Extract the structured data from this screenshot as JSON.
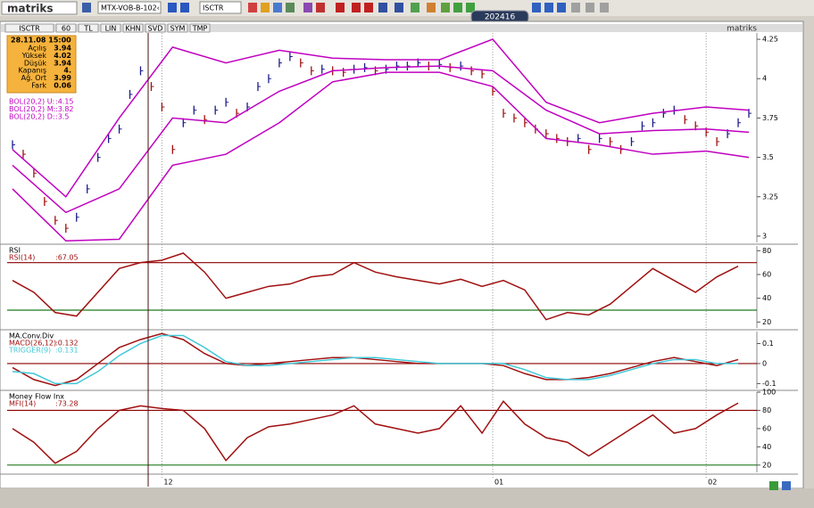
{
  "toolbar": {
    "logo": "matriks",
    "symbol": "MTX-VOB-B-102‹",
    "instrument": "ISCTR",
    "clock": "202416"
  },
  "tabs": [
    "ISCTR",
    "60",
    "TL",
    "LIN",
    "KHN",
    "SVD",
    "SYM",
    "TMP"
  ],
  "watermark": "matriks",
  "info_box": {
    "date": "28.11.08 15:00",
    "rows": [
      [
        "Açılış",
        "3.94"
      ],
      [
        "Yüksek",
        "4.02"
      ],
      [
        "Düşük",
        "3.94"
      ],
      [
        "Kapanış",
        "4."
      ],
      [
        "Ağ. Ort",
        "3.99"
      ],
      [
        "Fark",
        "0.06"
      ]
    ]
  },
  "chart_data": [
    {
      "type": "price",
      "categories": [
        null,
        null,
        null,
        null,
        null,
        null,
        null,
        null,
        null,
        null,
        null,
        null,
        null,
        null,
        "12",
        null,
        null,
        null,
        null,
        null,
        null,
        null,
        null,
        null,
        null,
        null,
        null,
        null,
        null,
        null,
        null,
        null,
        null,
        null,
        null,
        null,
        null,
        null,
        null,
        null,
        null,
        null,
        null,
        null,
        null,
        "01",
        null,
        null,
        null,
        null,
        null,
        null,
        null,
        null,
        null,
        null,
        null,
        null,
        null,
        null,
        null,
        null,
        null,
        null,
        null,
        "02",
        null,
        null,
        null,
        null
      ],
      "ylim": [
        2.96,
        4.29
      ],
      "yticks": [
        3,
        3.25,
        3.5,
        3.75,
        4,
        4.25
      ],
      "series": [
        {
          "up_color": "#1c1c8c",
          "down_color": "#a01010",
          "values": [
            3.58,
            3.52,
            3.4,
            3.22,
            3.1,
            3.05,
            3.12,
            3.3,
            3.5,
            3.62,
            3.68,
            3.9,
            4.05,
            3.95,
            3.82,
            3.55,
            3.72,
            3.8,
            3.74,
            3.8,
            3.85,
            3.78,
            3.82,
            3.95,
            4.0,
            4.1,
            4.14,
            4.1,
            4.05,
            4.06,
            4.05,
            4.04,
            4.06,
            4.07,
            4.05,
            4.06,
            4.08,
            4.08,
            4.1,
            4.08,
            4.09,
            4.07,
            4.08,
            4.05,
            4.03,
            3.92,
            3.78,
            3.75,
            3.72,
            3.68,
            3.65,
            3.62,
            3.6,
            3.62,
            3.55,
            3.62,
            3.6,
            3.55,
            3.6,
            3.7,
            3.72,
            3.78,
            3.8,
            3.74,
            3.7,
            3.66,
            3.6,
            3.65,
            3.72,
            3.78
          ]
        },
        {
          "name": "BOL(20,2) U:",
          "label": ":4.15",
          "color": "#c000c0",
          "x": [
            0,
            5,
            10,
            15,
            20,
            25,
            30,
            35,
            40,
            45,
            50,
            55,
            60,
            65,
            69
          ],
          "values": [
            3.55,
            3.25,
            3.75,
            4.2,
            4.1,
            4.18,
            4.13,
            4.12,
            4.12,
            4.25,
            3.85,
            3.72,
            3.78,
            3.82,
            3.8
          ]
        },
        {
          "name": "BOL(20,2) M:",
          "label": ":3.82",
          "color": "#c000c0",
          "x": [
            0,
            5,
            10,
            15,
            20,
            25,
            30,
            35,
            40,
            45,
            50,
            55,
            60,
            65,
            69
          ],
          "values": [
            3.45,
            3.15,
            3.3,
            3.75,
            3.72,
            3.92,
            4.05,
            4.07,
            4.08,
            4.05,
            3.8,
            3.65,
            3.67,
            3.68,
            3.66
          ]
        },
        {
          "name": "BOL(20,2) D:",
          "label": ":3.5",
          "color": "#c000c0",
          "x": [
            0,
            5,
            10,
            15,
            20,
            25,
            30,
            35,
            40,
            45,
            50,
            55,
            60,
            65,
            69
          ],
          "values": [
            3.3,
            2.97,
            2.98,
            3.45,
            3.52,
            3.72,
            3.98,
            4.04,
            4.04,
            3.95,
            3.62,
            3.58,
            3.52,
            3.54,
            3.5
          ]
        }
      ]
    },
    {
      "type": "line",
      "title": "RSI",
      "ylim": [
        15,
        84
      ],
      "yticks": [
        20,
        40,
        60,
        80
      ],
      "hlines": [
        {
          "value": 70,
          "color": "#8b0000"
        },
        {
          "value": 30,
          "color": "#1e7a1e"
        }
      ],
      "x": [
        0,
        2,
        4,
        6,
        8,
        10,
        12,
        14,
        16,
        18,
        20,
        22,
        24,
        26,
        28,
        30,
        32,
        34,
        36,
        38,
        40,
        42,
        44,
        46,
        48,
        50,
        52,
        54,
        56,
        58,
        60,
        62,
        64,
        66,
        68
      ],
      "series": [
        {
          "name": "RSI(14)",
          "label": ":67.05",
          "color": "#a01010",
          "values": [
            55,
            45,
            28,
            25,
            45,
            65,
            70,
            72,
            78,
            62,
            40,
            45,
            50,
            52,
            58,
            60,
            70,
            62,
            58,
            55,
            52,
            56,
            50,
            55,
            47,
            22,
            28,
            26,
            35,
            50,
            65,
            55,
            45,
            58,
            67
          ]
        }
      ]
    },
    {
      "type": "line",
      "title": "MA.Conv.Div",
      "ylim": [
        -0.125,
        0.16
      ],
      "yticks": [
        0.1,
        0,
        -0.1
      ],
      "hlines": [
        {
          "value": 0,
          "color": "#8b0000"
        }
      ],
      "x": [
        0,
        2,
        4,
        6,
        8,
        10,
        12,
        14,
        16,
        18,
        20,
        22,
        24,
        26,
        28,
        30,
        32,
        34,
        36,
        38,
        40,
        42,
        44,
        46,
        48,
        50,
        52,
        54,
        56,
        58,
        60,
        62,
        64,
        66,
        68
      ],
      "series": [
        {
          "name": "MACD(26,12)",
          "label": ":0.132",
          "color": "#a01010",
          "values": [
            -0.02,
            -0.08,
            -0.11,
            -0.08,
            0.0,
            0.08,
            0.12,
            0.15,
            0.12,
            0.05,
            0.0,
            -0.01,
            0.0,
            0.01,
            0.02,
            0.03,
            0.03,
            0.02,
            0.01,
            0.0,
            0.0,
            0.0,
            0.0,
            -0.01,
            -0.05,
            -0.08,
            -0.08,
            -0.07,
            -0.05,
            -0.02,
            0.01,
            0.03,
            0.01,
            -0.01,
            0.02
          ]
        },
        {
          "name": "TRIGGER(9)",
          "label": ":0.131",
          "color": "#40c8d8",
          "values": [
            -0.04,
            -0.05,
            -0.1,
            -0.1,
            -0.04,
            0.04,
            0.1,
            0.14,
            0.14,
            0.08,
            0.01,
            -0.01,
            -0.01,
            0.0,
            0.01,
            0.02,
            0.03,
            0.03,
            0.02,
            0.01,
            0.0,
            0.0,
            0.0,
            0.0,
            -0.03,
            -0.07,
            -0.08,
            -0.08,
            -0.06,
            -0.03,
            0.0,
            0.02,
            0.02,
            0.0,
            0.0
          ]
        }
      ]
    },
    {
      "type": "line",
      "title": "Money Flow Inx",
      "ylim": [
        12,
        100
      ],
      "yticks": [
        20,
        40,
        60,
        80,
        100
      ],
      "hlines": [
        {
          "value": 80,
          "color": "#8b0000"
        },
        {
          "value": 20,
          "color": "#1e7a1e"
        }
      ],
      "x": [
        0,
        2,
        4,
        6,
        8,
        10,
        12,
        14,
        16,
        18,
        20,
        22,
        24,
        26,
        28,
        30,
        32,
        34,
        36,
        38,
        40,
        42,
        44,
        46,
        48,
        50,
        52,
        54,
        56,
        58,
        60,
        62,
        64,
        66,
        68
      ],
      "series": [
        {
          "name": "MFI(14)",
          "label": ":73.28",
          "color": "#a01010",
          "values": [
            60,
            45,
            22,
            35,
            60,
            80,
            85,
            82,
            80,
            60,
            25,
            50,
            62,
            65,
            70,
            75,
            85,
            65,
            60,
            55,
            60,
            85,
            55,
            90,
            65,
            50,
            45,
            30,
            45,
            60,
            75,
            55,
            60,
            75,
            88
          ]
        }
      ]
    }
  ]
}
